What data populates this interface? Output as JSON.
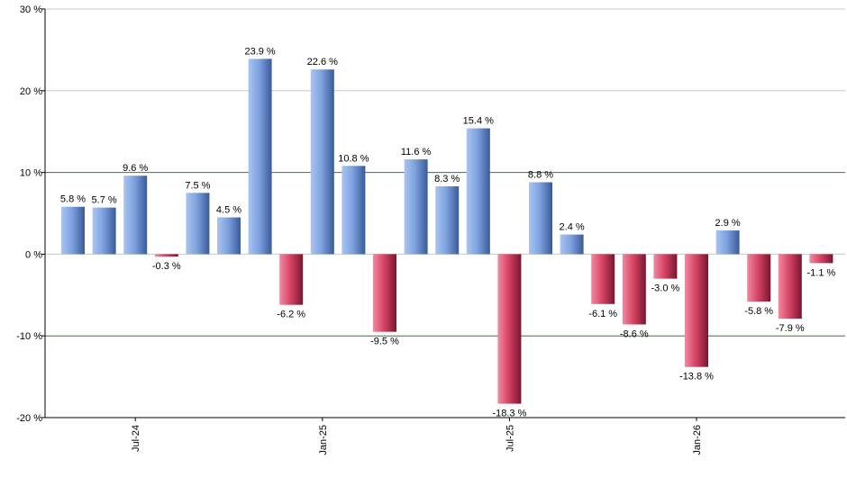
{
  "chart_data": {
    "type": "bar",
    "title": "",
    "xlabel": "",
    "ylabel": "",
    "ylim": [
      -20,
      30
    ],
    "yticks": [
      -20,
      -10,
      0,
      10,
      20,
      30
    ],
    "ytick_labels": [
      "-20 %",
      "-10 %",
      "0 %",
      "10 %",
      "20 %",
      "30 %"
    ],
    "highlight_gridlines": [
      10,
      -10
    ],
    "x_tick_labels": [
      {
        "label": "Jul-24",
        "index": 2
      },
      {
        "label": "Jan-25",
        "index": 8
      },
      {
        "label": "Jul-25",
        "index": 14
      },
      {
        "label": "Jan-26",
        "index": 20
      }
    ],
    "values": [
      5.8,
      5.7,
      9.6,
      -0.3,
      7.5,
      4.5,
      23.9,
      -6.2,
      22.6,
      10.8,
      -9.5,
      11.6,
      8.3,
      15.4,
      -18.3,
      8.8,
      2.4,
      -6.1,
      -8.6,
      -3.0,
      -13.8,
      2.9,
      -5.8,
      -7.9,
      -1.1
    ],
    "data_labels": [
      "5.8 %",
      "5.7 %",
      "9.6 %",
      "-0.3 %",
      "7.5 %",
      "4.5 %",
      "23.9 %",
      "-6.2 %",
      "22.6 %",
      "10.8 %",
      "-9.5 %",
      "11.6 %",
      "8.3 %",
      "15.4 %",
      "-18.3 %",
      "8.8 %",
      "2.4 %",
      "-6.1 %",
      "-8.6 %",
      "-3.0 %",
      "-13.8 %",
      "2.9 %",
      "-5.8 %",
      "-7.9 %",
      "-1.1 %"
    ],
    "colors": {
      "positive": "#7fa3e0",
      "positive_dark": "#3a5a99",
      "negative": "#e05070",
      "negative_dark": "#8a1a33",
      "grid": "#c8c8c8",
      "highlight_grid": "#2e7d2e",
      "axis": "#000000"
    },
    "grid": true
  }
}
